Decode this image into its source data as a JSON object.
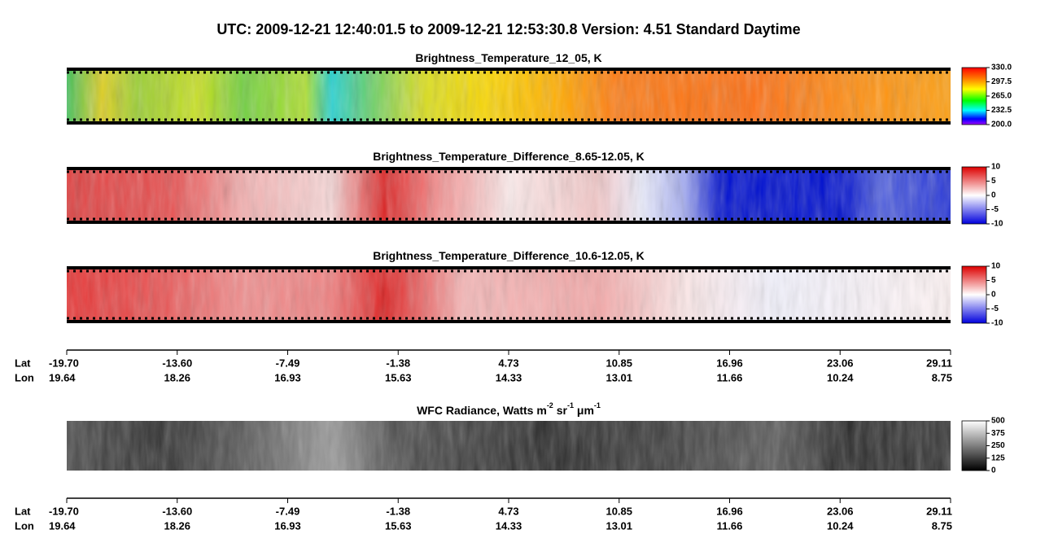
{
  "header": {
    "title": "UTC:  2009-12-21   12:40:01.5  to  2009-12-21   12:53:30.8    Version: 4.51  Standard Daytime"
  },
  "panels": [
    {
      "title_parts": [
        "Brightness_Temperature_12_05, K"
      ],
      "colorbar": [
        "330.0",
        "297.5",
        "265.0",
        "232.5",
        "200.0"
      ]
    },
    {
      "title_parts": [
        "Brightness_Temperature_Difference_8.65-12.05, K"
      ],
      "colorbar": [
        "10",
        "5",
        "0",
        "-5",
        "-10"
      ]
    },
    {
      "title_parts": [
        "Brightness_Temperature_Difference_10.6-12.05, K"
      ],
      "colorbar": [
        "10",
        "5",
        "0",
        "-5",
        "-10"
      ]
    },
    {
      "title_parts": [
        "WFC Radiance, Watts m",
        "-2",
        " sr",
        "-1",
        " μ",
        "m",
        "-1"
      ],
      "colorbar": [
        "500",
        "375",
        "250",
        "125",
        "0"
      ]
    }
  ],
  "axes": [
    {
      "lat_label": "Lat",
      "lon_label": "Lon",
      "lat": [
        "-19.70",
        "-13.60",
        "-7.49",
        "-1.38",
        "4.73",
        "10.85",
        "16.96",
        "23.06",
        "29.11"
      ],
      "lon": [
        "19.64",
        "18.26",
        "16.93",
        "15.63",
        "14.33",
        "13.01",
        "11.66",
        "10.24",
        "8.75"
      ]
    },
    {
      "lat_label": "Lat",
      "lon_label": "Lon",
      "lat": [
        "-19.70",
        "-13.60",
        "-7.49",
        "-1.38",
        "4.73",
        "10.85",
        "16.96",
        "23.06",
        "29.11"
      ],
      "lon": [
        "19.64",
        "18.26",
        "16.93",
        "15.63",
        "14.33",
        "13.01",
        "11.66",
        "10.24",
        "8.75"
      ]
    }
  ]
}
